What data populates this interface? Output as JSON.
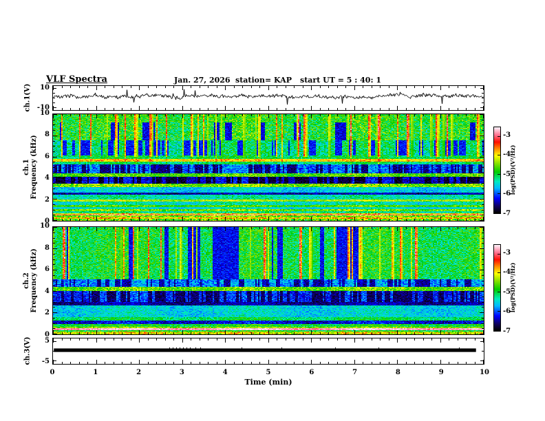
{
  "header": {
    "title": "VLF Spectra",
    "date": "Jan. 27, 2026",
    "station": "station= KAP",
    "start_ut": "start UT =  5 : 40: 1"
  },
  "axes": {
    "xlabel": "Time (min)",
    "xticks": [
      0,
      1,
      2,
      3,
      4,
      5,
      6,
      7,
      8,
      9,
      10
    ],
    "xlim": [
      0,
      10
    ],
    "panel1": {
      "ylabel": "ch.1(V)",
      "yticks": [
        10,
        -10
      ],
      "ylim": [
        -10,
        10
      ]
    },
    "panel2": {
      "ylabel_line1": "ch.1",
      "ylabel_line2": "Frequency (kHz)",
      "yticks": [
        10,
        8,
        6,
        4,
        2,
        0
      ],
      "ylim": [
        0,
        10
      ]
    },
    "panel3": {
      "ylabel_line1": "ch.2",
      "ylabel_line2": "Frequency (kHz)",
      "yticks": [
        10,
        8,
        6,
        4,
        2,
        0
      ],
      "ylim": [
        0,
        10
      ]
    },
    "panel4": {
      "ylabel": "ch.3(V)",
      "yticks": [
        5,
        -5
      ],
      "ylim": [
        -5,
        5
      ]
    }
  },
  "colorbars": [
    {
      "label": "log(PSD)(V²/Hz)",
      "ticks": [
        -3,
        -4,
        -5,
        -6,
        -7
      ],
      "vmin": -7,
      "vmax": -2.55
    },
    {
      "label": "log(PSD)(V²/Hz)",
      "ticks": [
        -3,
        -4,
        -5,
        -6,
        -7
      ],
      "vmin": -7,
      "vmax": -2.55
    }
  ],
  "chart_meta": {
    "background": "#ffffff",
    "frame_color": "#000000",
    "colormap": [
      [
        0.0,
        0,
        0,
        0
      ],
      [
        0.08,
        15,
        0,
        95
      ],
      [
        0.17,
        0,
        0,
        255
      ],
      [
        0.29,
        0,
        185,
        255
      ],
      [
        0.37,
        0,
        235,
        190
      ],
      [
        0.48,
        0,
        205,
        0
      ],
      [
        0.58,
        135,
        225,
        0
      ],
      [
        0.67,
        255,
        255,
        0
      ],
      [
        0.75,
        255,
        140,
        0
      ],
      [
        0.83,
        255,
        15,
        0
      ],
      [
        0.91,
        255,
        110,
        140
      ],
      [
        1.0,
        255,
        240,
        248
      ]
    ]
  },
  "chart_data": [
    {
      "type": "line",
      "name": "ch1-voltage-waveform",
      "title": "ch.1(V) raw signal",
      "xlim": [
        0,
        10
      ],
      "ylim": [
        -10,
        10
      ],
      "baseline": 2,
      "noise_amp": 1.6,
      "spike_prob": 0.012,
      "spike_depth": [
        2,
        9
      ],
      "color": "#000000",
      "seed": 7
    },
    {
      "type": "heatmap",
      "name": "ch1-spectrogram",
      "title": "ch.1 VLF spectrogram",
      "xlim": [
        0,
        10
      ],
      "ylim": [
        0,
        10
      ],
      "vmin": -7,
      "vmax": -2.55,
      "seed": 11,
      "streaks": {
        "prob": 0.13,
        "fmin": 6.0,
        "strength": [
          0.5,
          2.3
        ],
        "partial": 0.35,
        "deep": 0.25
      },
      "bands": [
        [
          9.25,
          10.01,
          -4.8,
          0.5,
          0.0,
          0
        ],
        [
          7.55,
          9.25,
          -4.85,
          0.6,
          0.05,
          -6.3
        ],
        [
          6.15,
          7.55,
          -5.15,
          0.5,
          0.4,
          -6.2
        ],
        [
          5.8,
          6.15,
          -5.05,
          0.35,
          0.0,
          0
        ],
        [
          5.55,
          5.8,
          -3.9,
          0.35,
          0.0,
          0
        ],
        [
          5.3,
          5.55,
          -5.15,
          0.3,
          0.0,
          0
        ],
        [
          4.45,
          5.3,
          -5.95,
          0.35,
          0.45,
          -6.6
        ],
        [
          4.15,
          4.45,
          -4.6,
          0.4,
          0.0,
          0
        ],
        [
          3.45,
          4.15,
          -6.3,
          0.3,
          0.45,
          -6.8
        ],
        [
          3.15,
          3.45,
          -4.45,
          0.5,
          0.0,
          0
        ],
        [
          2.65,
          3.15,
          -5.55,
          0.35,
          0.0,
          0
        ],
        [
          2.45,
          2.65,
          -6.45,
          0.3,
          0.0,
          0
        ],
        [
          1.95,
          2.45,
          -5.3,
          0.35,
          0.0,
          0
        ],
        [
          1.78,
          1.95,
          -4.3,
          0.3,
          0.0,
          0
        ],
        [
          1.45,
          1.78,
          -5.35,
          0.35,
          0.0,
          0
        ],
        [
          1.25,
          1.45,
          -4.65,
          0.4,
          0.0,
          0
        ],
        [
          1.05,
          1.25,
          -5.45,
          0.35,
          0.0,
          0
        ],
        [
          0.85,
          1.05,
          -4.5,
          0.45,
          0.0,
          0
        ],
        [
          0.7,
          0.85,
          -5.25,
          0.4,
          0.0,
          0
        ],
        [
          0.55,
          0.7,
          -3.9,
          0.45,
          0.0,
          0
        ],
        [
          0.47,
          0.55,
          -2.95,
          0.25,
          0.0,
          0
        ],
        [
          0.28,
          0.47,
          -4.45,
          0.5,
          0.0,
          0
        ],
        [
          0.14,
          0.28,
          -3.8,
          0.5,
          0.0,
          0
        ],
        [
          0.0,
          0.14,
          -4.55,
          0.6,
          0.0,
          0
        ]
      ]
    },
    {
      "type": "heatmap",
      "name": "ch2-spectrogram",
      "title": "ch.2 VLF spectrogram",
      "xlim": [
        0,
        10
      ],
      "ylim": [
        0,
        10
      ],
      "vmin": -7,
      "vmax": -2.55,
      "seed": 23,
      "streaks": {
        "prob": 0.11,
        "fmin": 5.15,
        "strength": [
          0.5,
          2.4
        ],
        "partial": 0.15,
        "deep": 0.2
      },
      "bands": [
        [
          5.15,
          10.01,
          -4.95,
          0.5,
          0.04,
          -6.25
        ],
        [
          4.4,
          5.15,
          -5.8,
          0.4,
          0.45,
          -6.5
        ],
        [
          4.05,
          4.4,
          -4.55,
          0.4,
          0.0,
          0
        ],
        [
          3.0,
          4.05,
          -6.1,
          0.35,
          0.5,
          -6.65
        ],
        [
          2.7,
          3.0,
          -6.5,
          0.25,
          0.0,
          0
        ],
        [
          1.6,
          2.7,
          -5.5,
          0.35,
          0.0,
          0
        ],
        [
          1.25,
          1.6,
          -5.05,
          0.35,
          0.0,
          0
        ],
        [
          0.95,
          1.25,
          -6.3,
          0.35,
          0.0,
          0
        ],
        [
          0.7,
          0.95,
          -4.9,
          0.4,
          0.0,
          0
        ],
        [
          0.52,
          0.7,
          -4.4,
          0.4,
          0.0,
          0
        ],
        [
          0.36,
          0.52,
          -2.75,
          0.2,
          0.0,
          0
        ],
        [
          0.2,
          0.36,
          -4.95,
          0.4,
          0.0,
          0
        ],
        [
          0.0,
          0.2,
          -4.1,
          0.6,
          0.0,
          0
        ]
      ]
    },
    {
      "type": "bar-band",
      "name": "ch3-saturated-signal",
      "title": "ch.3(V) clipped signal",
      "xlim": [
        0,
        10
      ],
      "ylim": [
        -5,
        5
      ],
      "x_extent": [
        0.02,
        9.82
      ],
      "y_band": [
        -0.4,
        1.4
      ],
      "spikes_x": [
        2.7,
        2.78,
        2.86,
        2.94,
        3.02,
        3.1,
        3.18,
        3.3,
        3.42,
        4.38,
        5.3,
        6.55,
        7.56,
        9.42
      ],
      "spike_top": 1.9,
      "color": "#000000"
    }
  ]
}
